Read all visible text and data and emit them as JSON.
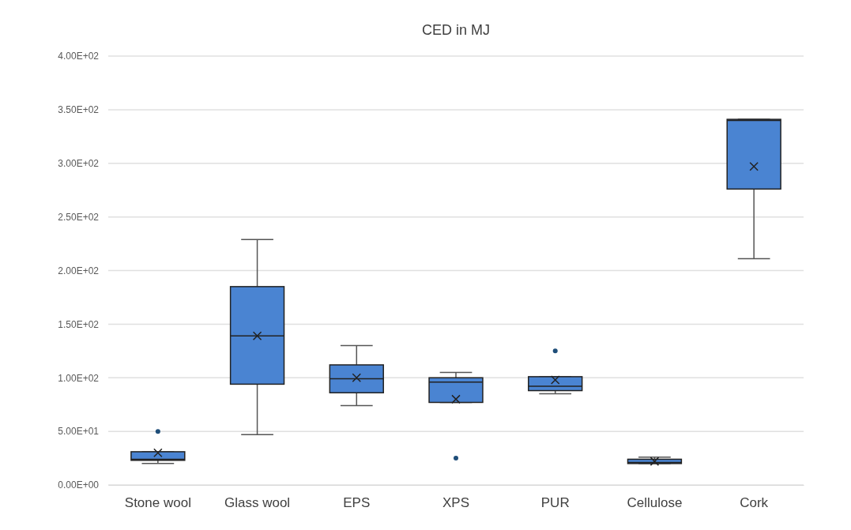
{
  "chart_data": {
    "type": "box",
    "title": "CED in MJ",
    "categories": [
      "Stone wool",
      "Glass wool",
      "EPS",
      "XPS",
      "PUR",
      "Cellulose",
      "Cork"
    ],
    "boxes": [
      {
        "low": 20,
        "q1": 23,
        "median": 24,
        "q3": 31,
        "high": 31,
        "mean": 30,
        "outliers": [
          50
        ]
      },
      {
        "low": 47,
        "q1": 94,
        "median": 139,
        "q3": 185,
        "high": 229,
        "mean": 139
      },
      {
        "low": 74,
        "q1": 86,
        "median": 99,
        "q3": 112,
        "high": 130,
        "mean": 100
      },
      {
        "low": 77,
        "q1": 77,
        "median": 96,
        "q3": 100,
        "high": 105,
        "mean": 80,
        "outliers": [
          25
        ]
      },
      {
        "low": 85,
        "q1": 88,
        "median": 92,
        "q3": 101,
        "high": 101,
        "mean": 98,
        "outliers": [
          125
        ]
      },
      {
        "low": 20,
        "q1": 20,
        "median": 21,
        "q3": 24,
        "high": 26,
        "mean": 22
      },
      {
        "low": 211,
        "q1": 276,
        "median": 340,
        "q3": 341,
        "high": 341,
        "mean": 297
      }
    ],
    "color": "#4a84d2",
    "ylim": [
      0,
      400
    ],
    "yticks": [
      {
        "value": 0,
        "label": "0.00E+00"
      },
      {
        "value": 50,
        "label": "5.00E+01"
      },
      {
        "value": 100,
        "label": "1.00E+02"
      },
      {
        "value": 150,
        "label": "1.50E+02"
      },
      {
        "value": 200,
        "label": "2.00E+02"
      },
      {
        "value": 250,
        "label": "2.50E+02"
      },
      {
        "value": 300,
        "label": "3.00E+02"
      },
      {
        "value": 350,
        "label": "3.50E+02"
      },
      {
        "value": 400,
        "label": "4.00E+02"
      }
    ],
    "grid": "y",
    "marker": "cross"
  }
}
